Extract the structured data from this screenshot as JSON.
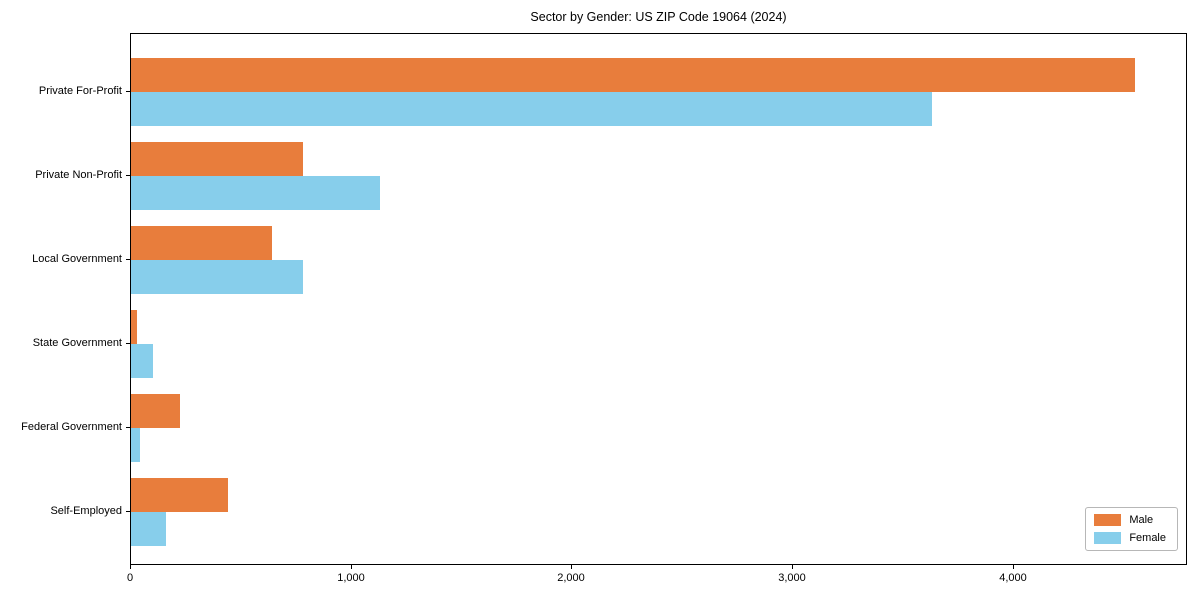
{
  "chart_data": {
    "type": "bar",
    "orientation": "horizontal",
    "title": "Sector by Gender: US ZIP Code 19064 (2024)",
    "categories": [
      "Private For-Profit",
      "Private Non-Profit",
      "Local Government",
      "State Government",
      "Federal Government",
      "Self-Employed"
    ],
    "series": [
      {
        "name": "Male",
        "color": "#E87D3C",
        "values": [
          4550,
          780,
          640,
          25,
          220,
          440
        ]
      },
      {
        "name": "Female",
        "color": "#87CEEB",
        "values": [
          3630,
          1130,
          780,
          100,
          40,
          160
        ]
      }
    ],
    "xlabel": "",
    "ylabel": "",
    "xlim": [
      0,
      4780
    ],
    "x_ticks": [
      {
        "value": 0,
        "label": "0"
      },
      {
        "value": 1000,
        "label": "1,000"
      },
      {
        "value": 2000,
        "label": "2,000"
      },
      {
        "value": 3000,
        "label": "3,000"
      },
      {
        "value": 4000,
        "label": "4,000"
      }
    ],
    "grid": false,
    "legend_position": "lower right",
    "axis_color": "#000000",
    "text_color": "#000000",
    "background_color": "#ffffff"
  }
}
